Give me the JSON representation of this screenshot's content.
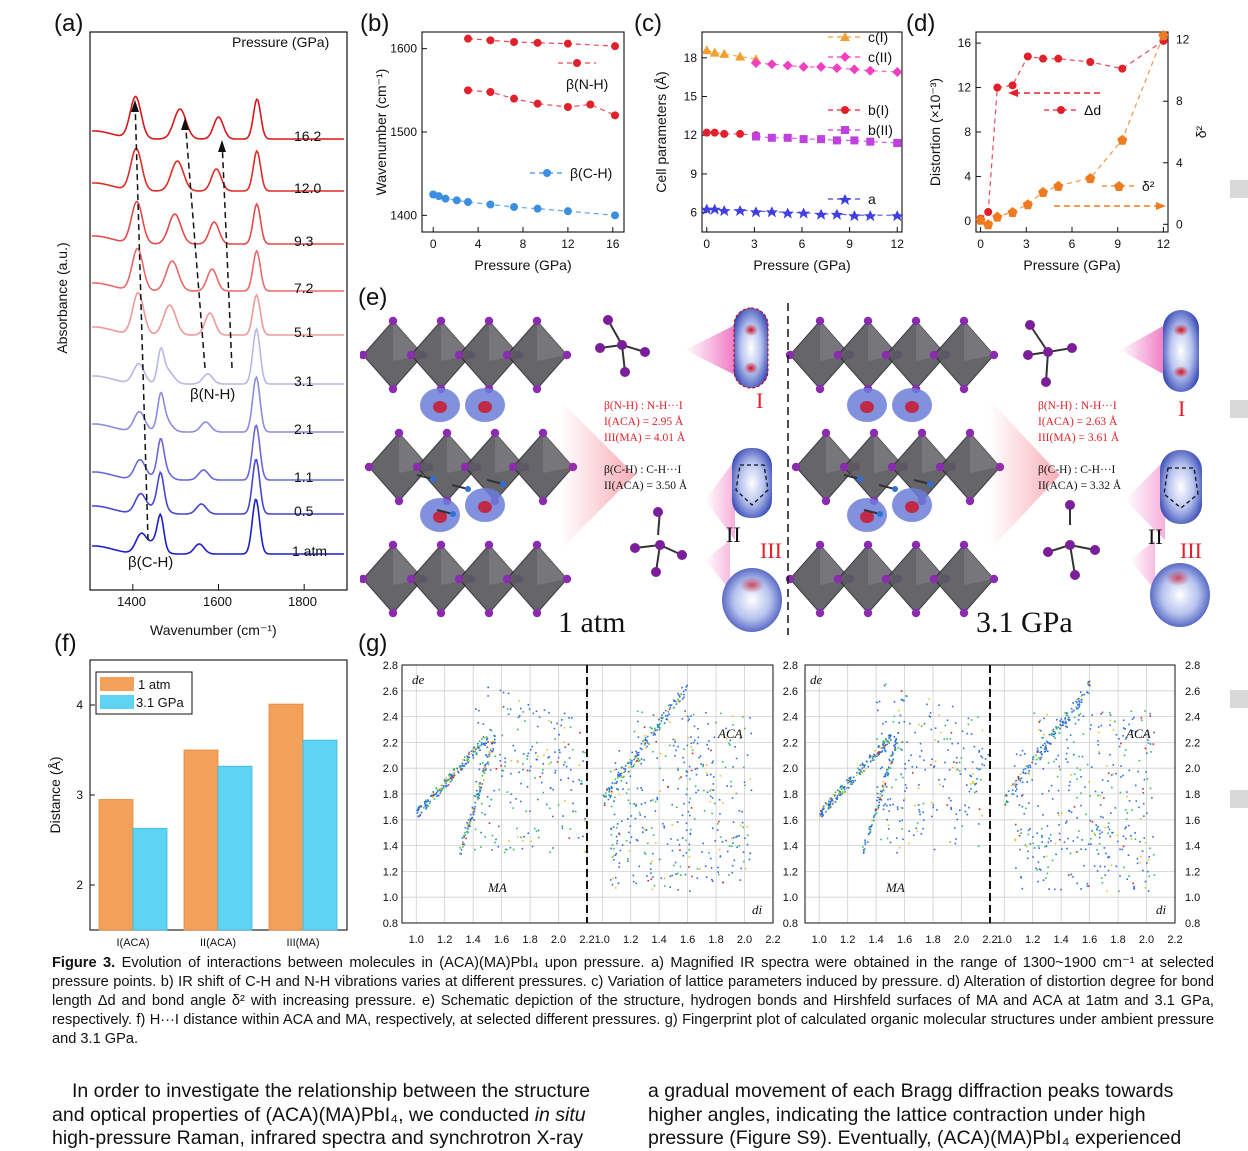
{
  "panels": {
    "a": "(a)",
    "b": "(b)",
    "c": "(c)",
    "d": "(d)",
    "e": "(e)",
    "f": "(f)",
    "g": "(g)"
  },
  "panel_a": {
    "legend_title": "Pressure (GPa)",
    "xlabel": "Wavenumber (cm⁻¹)",
    "ylabel": "Absorbance (a.u.)",
    "xticks": [
      "1400",
      "1600",
      "1800"
    ],
    "pressures": [
      "16.2",
      "12.0",
      "9.3",
      "7.2",
      "5.1",
      "3.1",
      "2.1",
      "1.1",
      "0.5",
      "1 atm"
    ],
    "colors": [
      "#d7191c",
      "#de2d26",
      "#e34a4a",
      "#e86a6a",
      "#ee9a9a",
      "#b7b7e8",
      "#8c8ce0",
      "#6868d8",
      "#4646d0",
      "#1e1ec8"
    ],
    "annot_nh": "β(N-H)",
    "annot_ch": "β(C-H)"
  },
  "chart_data": [
    {
      "panel": "b",
      "type": "scatter",
      "xlabel": "Pressure (GPa)",
      "ylabel": "Wavenumber (cm⁻¹)",
      "xlim": [
        -1,
        17
      ],
      "ylim": [
        1380,
        1620
      ],
      "xticks": [
        "0",
        "4",
        "8",
        "12",
        "16"
      ],
      "yticks": [
        "1400",
        "1500",
        "1600"
      ],
      "series": [
        {
          "name": "β(N-H)",
          "color": "#e0202a",
          "x": [
            3.1,
            5.1,
            7.2,
            9.3,
            12.0,
            16.2
          ],
          "y": [
            1612,
            1610,
            1608,
            1607,
            1606,
            1603
          ]
        },
        {
          "name": "β(N-H)",
          "color": "#e0202a",
          "x": [
            3.1,
            5.1,
            7.2,
            9.3,
            12.0,
            14.0,
            16.2
          ],
          "y": [
            1550,
            1548,
            1540,
            1534,
            1530,
            1533,
            1520
          ]
        },
        {
          "name": "β(C-H)",
          "color": "#3b8fe0",
          "x": [
            0,
            0.5,
            1.1,
            2.1,
            3.1,
            5.1,
            7.2,
            9.3,
            12.0,
            16.2
          ],
          "y": [
            1425,
            1423,
            1420,
            1418,
            1416,
            1413,
            1410,
            1408,
            1405,
            1400
          ]
        }
      ]
    },
    {
      "panel": "c",
      "type": "scatter",
      "xlabel": "Pressure (GPa)",
      "ylabel": "Cell parameters (Å)",
      "xlim": [
        -0.3,
        12.3
      ],
      "ylim": [
        4.5,
        20
      ],
      "xticks": [
        "0",
        "3",
        "6",
        "9",
        "12"
      ],
      "yticks": [
        "6",
        "9",
        "12",
        "15",
        "18"
      ],
      "series": [
        {
          "name": "c(I)",
          "color": "#f0a030",
          "x": [
            0,
            0.5,
            1.1,
            2.1,
            3.1
          ],
          "y": [
            18.6,
            18.4,
            18.3,
            18.1,
            17.9
          ]
        },
        {
          "name": "c(II)",
          "color": "#f040c0",
          "x": [
            3.1,
            4.1,
            5.1,
            6.1,
            7.2,
            8.2,
            9.3,
            10.3,
            12.0
          ],
          "y": [
            17.6,
            17.5,
            17.4,
            17.3,
            17.3,
            17.2,
            17.1,
            17.0,
            16.9
          ]
        },
        {
          "name": "b(I)",
          "color": "#e0202a",
          "x": [
            0,
            0.5,
            1.1,
            2.1,
            3.1
          ],
          "y": [
            12.2,
            12.2,
            12.1,
            12.1,
            12.0
          ]
        },
        {
          "name": "b(II)",
          "color": "#c040e0",
          "x": [
            3.1,
            4.1,
            5.1,
            6.1,
            7.2,
            8.2,
            9.3,
            10.3,
            12.0
          ],
          "y": [
            11.9,
            11.8,
            11.8,
            11.7,
            11.7,
            11.6,
            11.6,
            11.5,
            11.4
          ]
        },
        {
          "name": "a",
          "color": "#4040e0",
          "x": [
            0,
            0.5,
            1.1,
            2.1,
            3.1,
            4.1,
            5.1,
            6.1,
            7.2,
            8.2,
            9.3,
            10.3,
            12.0
          ],
          "y": [
            6.3,
            6.3,
            6.2,
            6.2,
            6.1,
            6.1,
            6.0,
            6.0,
            5.9,
            5.9,
            5.8,
            5.8,
            5.8
          ]
        }
      ]
    },
    {
      "panel": "d",
      "type": "scatter",
      "xlabel": "Pressure (GPa)",
      "ylabel": "Distortion (×10⁻³)",
      "ylabel_right": "δ²",
      "xlim": [
        -0.3,
        12.3
      ],
      "ylim": [
        -1,
        17
      ],
      "ylim_right": [
        -0.5,
        12.5
      ],
      "xticks": [
        "0",
        "3",
        "6",
        "9",
        "12"
      ],
      "yticks": [
        "0",
        "4",
        "8",
        "12",
        "16"
      ],
      "yticks_right": [
        "0",
        "4",
        "8",
        "12"
      ],
      "series": [
        {
          "name": "Δd",
          "color": "#e0202a",
          "axis": "left",
          "x": [
            0,
            0.5,
            1.1,
            2.1,
            3.1,
            4.1,
            5.1,
            7.2,
            9.3,
            12.0
          ],
          "y": [
            0.2,
            0.8,
            12.0,
            12.2,
            14.8,
            14.6,
            14.6,
            14.3,
            13.7,
            16.2
          ]
        },
        {
          "name": "δ²",
          "color": "#f07a20",
          "axis": "right",
          "x": [
            0,
            0.5,
            1.1,
            2.1,
            3.1,
            4.1,
            5.1,
            7.2,
            9.3,
            12.0
          ],
          "y": [
            0.3,
            0.0,
            0.5,
            0.8,
            1.3,
            2.1,
            2.5,
            3.0,
            5.5,
            12.3
          ]
        }
      ]
    },
    {
      "panel": "f",
      "type": "bar",
      "ylabel": "Distance (Å)",
      "ylim": [
        1.5,
        4.5
      ],
      "yticks": [
        "2",
        "3",
        "4"
      ],
      "categories": [
        "I(ACA)",
        "II(ACA)",
        "III(MA)"
      ],
      "series": [
        {
          "name": "1 atm",
          "color": "#f3a05a",
          "values": [
            2.95,
            3.5,
            4.01
          ]
        },
        {
          "name": "3.1 GPa",
          "color": "#5ed3f3",
          "values": [
            2.63,
            3.32,
            3.61
          ]
        }
      ]
    }
  ],
  "panel_e": {
    "left_title": "1 atm",
    "right_title": "3.1 GPa",
    "left_nh": [
      "β(N-H) : N-H···I",
      "I(ACA) = 2.95 Å",
      "III(MA) = 4.01 Å"
    ],
    "left_ch": [
      "β(C-H) : C-H···I",
      "II(ACA) = 3.50 Å"
    ],
    "right_nh": [
      "β(N-H) : N-H···I",
      "I(ACA) = 2.63 Å",
      "III(MA) = 3.61 Å"
    ],
    "right_ch": [
      "β(C-H) : C-H···I",
      "II(ACA) = 3.32 Å"
    ],
    "roman": [
      "I",
      "II",
      "III"
    ]
  },
  "panel_g": {
    "de": "de",
    "di": "di",
    "ma": "MA",
    "aca": "ACA",
    "yticks": [
      "2.8",
      "2.6",
      "2.4",
      "2.2",
      "2.0",
      "1.8",
      "1.6",
      "1.4",
      "1.2",
      "1.0",
      "0.8"
    ],
    "xticks": [
      "1.0",
      "1.2",
      "1.4",
      "1.6",
      "1.8",
      "2.0",
      "2.2"
    ]
  },
  "caption": {
    "label": "Figure 3.",
    "text": "Evolution of interactions between molecules in (ACA)(MA)PbI₄ upon pressure. a) Magnified IR spectra were obtained in the range of 1300~1900 cm⁻¹ at selected pressure points. b) IR shift of C-H and N-H vibrations varies at different pressures. c) Variation of lattice parameters induced by pressure. d) Alteration of distortion degree for bond length Δd and bond angle δ² with increasing pressure. e) Schematic depiction of the structure, hydrogen bonds and Hirshfeld surfaces of MA and ACA at 1atm and 3.1 GPa, respectively. f) H···I distance within ACA and MA, respectively, at selected different pressures. g) Fingerprint plot of calculated organic molecular structures under ambient pressure and 3.1 GPa."
  },
  "body": {
    "left_1": "In order to investigate the relationship between the structure",
    "left_2a": "and optical properties of (ACA)(MA)PbI₄, we conducted ",
    "left_2b": "in situ",
    "left_3": "high-pressure Raman, infrared spectra and synchrotron X-ray",
    "right_1": "a gradual movement of each Bragg diffraction peaks towards",
    "right_2": "higher angles, indicating the lattice contraction under high",
    "right_3": "pressure (Figure S9). Eventually, (ACA)(MA)PbI₄ experienced"
  }
}
